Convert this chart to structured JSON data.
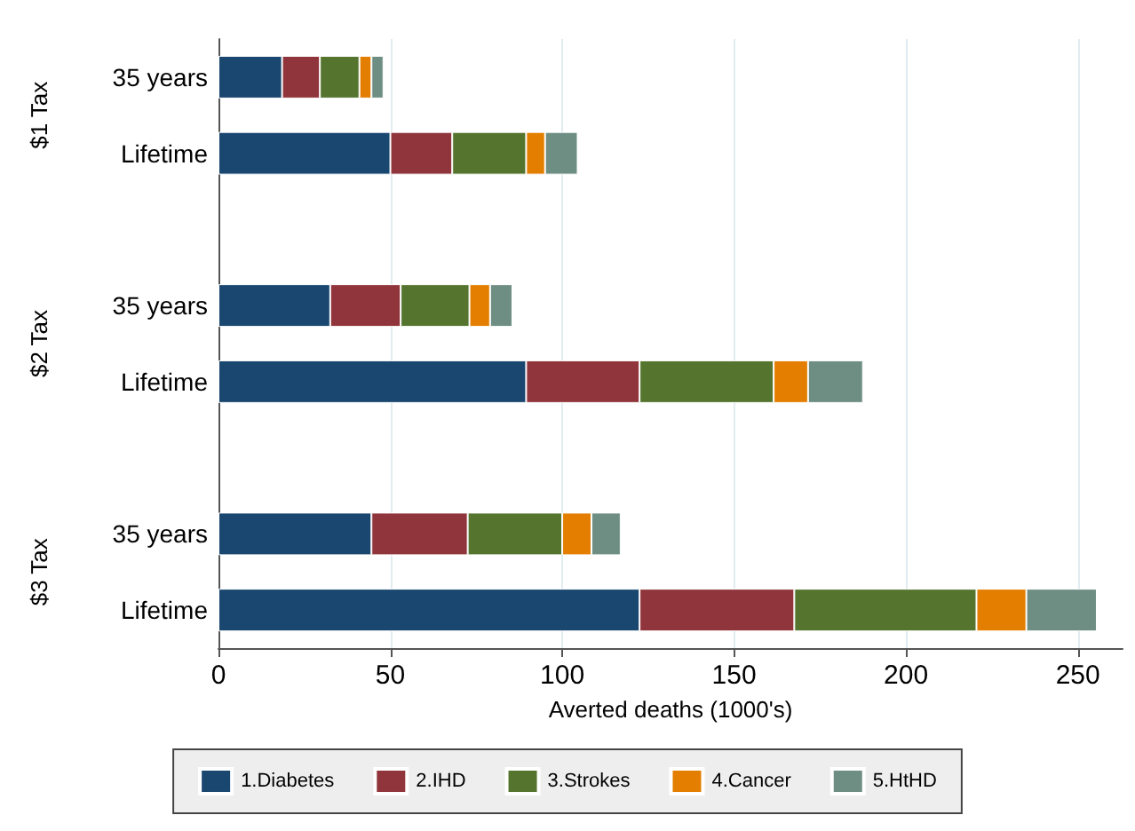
{
  "chart_data": {
    "type": "bar",
    "orientation": "horizontal",
    "stacked": true,
    "xlabel": "Averted deaths (1000's)",
    "categories": [
      "35 years",
      "Lifetime",
      null,
      "35 years",
      "Lifetime",
      null,
      "35 years",
      "Lifetime"
    ],
    "annotations": [
      "$1 Tax",
      "$2 Tax",
      "$3 Tax"
    ],
    "series": [
      {
        "name": "1.Diabetes",
        "color": "#1a476f",
        "values": [
          18.5,
          50,
          null,
          32.5,
          89.5,
          null,
          44.5,
          122.5
        ]
      },
      {
        "name": "2.IHD",
        "color": "#90353b",
        "values": [
          11,
          18,
          null,
          20.5,
          33,
          null,
          28,
          45
        ]
      },
      {
        "name": "3.Strokes",
        "color": "#55752f",
        "values": [
          11.5,
          21.5,
          null,
          20,
          39,
          null,
          27.5,
          53
        ]
      },
      {
        "name": "4.Cancer",
        "color": "#e37e00",
        "values": [
          3.5,
          5.5,
          null,
          6,
          10,
          null,
          8.5,
          14.5
        ]
      },
      {
        "name": "5.HtHD",
        "color": "#6e8e84",
        "values": [
          3.5,
          9.5,
          null,
          6.5,
          16,
          null,
          8.5,
          20.5
        ]
      }
    ],
    "xlim": [
      0,
      263
    ],
    "xticks": [
      0,
      50,
      100,
      150,
      200,
      250
    ],
    "grid": "x",
    "legend": "bottom"
  }
}
